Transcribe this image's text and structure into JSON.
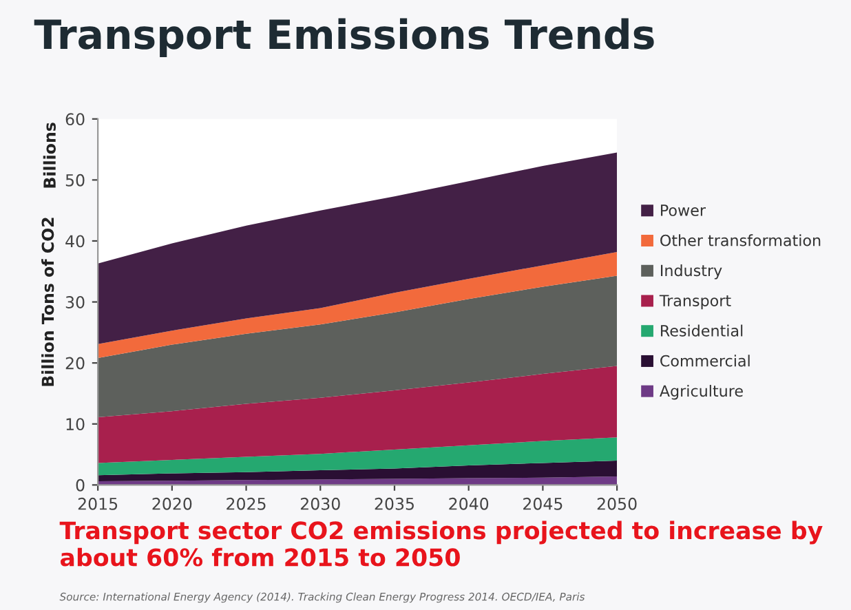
{
  "chart_data": {
    "type": "area",
    "stacked": true,
    "title": "Transport Emissions Trends",
    "ylabel": "Billion Tons of CO2",
    "annotations": [
      "Billions",
      "Transport sector CO2 emissions projected to increase by about 60% from 2015 to 2050",
      "Source: International Energy Agency (2014). Tracking Clean Energy Progress 2014. OECD/IEA, Paris"
    ],
    "x": [
      2015,
      2020,
      2025,
      2030,
      2035,
      2040,
      2045,
      2050
    ],
    "series": [
      {
        "name": "Agriculture",
        "color": "#6e3a86",
        "values": [
          0.6,
          0.7,
          0.8,
          0.9,
          1.0,
          1.1,
          1.2,
          1.4
        ]
      },
      {
        "name": "Commercial",
        "color": "#2a0f33",
        "values": [
          1.0,
          1.2,
          1.3,
          1.5,
          1.7,
          2.1,
          2.4,
          2.6
        ]
      },
      {
        "name": "Residential",
        "color": "#25a870",
        "values": [
          2.0,
          2.2,
          2.5,
          2.7,
          3.1,
          3.3,
          3.6,
          3.8
        ]
      },
      {
        "name": "Transport",
        "color": "#a8204d",
        "values": [
          7.5,
          8.0,
          8.7,
          9.2,
          9.7,
          10.3,
          11.0,
          11.7
        ]
      },
      {
        "name": "Industry",
        "color": "#5d605c",
        "values": [
          9.7,
          10.9,
          11.5,
          12.0,
          12.8,
          13.7,
          14.3,
          14.8
        ]
      },
      {
        "name": "Other transformation",
        "color": "#f26a3c",
        "values": [
          2.3,
          2.3,
          2.5,
          2.7,
          3.2,
          3.3,
          3.5,
          3.9
        ]
      },
      {
        "name": "Power",
        "color": "#432046",
        "values": [
          13.2,
          14.3,
          15.2,
          16.0,
          15.8,
          16.0,
          16.3,
          16.3
        ]
      }
    ],
    "xlim": [
      2015,
      2050
    ],
    "xticks": [
      2015,
      2020,
      2025,
      2030,
      2035,
      2040,
      2045,
      2050
    ],
    "ylim": [
      0,
      60
    ],
    "yticks": [
      0,
      10,
      20,
      30,
      40,
      50,
      60
    ],
    "grid": false,
    "legend": "right"
  }
}
